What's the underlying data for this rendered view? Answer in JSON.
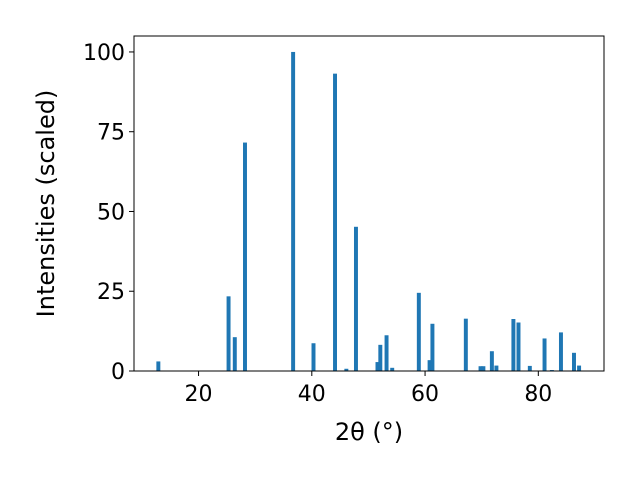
{
  "chart_data": {
    "type": "bar",
    "xlabel": "2θ (°)",
    "ylabel": "Intensities (scaled)",
    "xlim": [
      8.6,
      91.6
    ],
    "ylim": [
      0,
      105
    ],
    "xticks": [
      20,
      40,
      60,
      80
    ],
    "yticks": [
      0,
      25,
      50,
      75,
      100
    ],
    "grid": false,
    "bar_color": "#1f77b4",
    "bar_width": 0.7,
    "x": [
      12.9,
      25.3,
      26.4,
      28.2,
      36.7,
      40.3,
      44.1,
      46.1,
      47.8,
      51.6,
      52.1,
      53.2,
      54.2,
      58.9,
      60.8,
      61.3,
      67.2,
      69.8,
      70.3,
      71.8,
      72.6,
      75.6,
      76.5,
      78.5,
      81.1,
      82.4,
      84.0,
      86.3,
      87.2
    ],
    "values": [
      3.0,
      23.4,
      10.6,
      71.6,
      100.0,
      8.7,
      93.2,
      0.7,
      45.2,
      2.8,
      8.2,
      11.2,
      1.0,
      24.5,
      3.4,
      14.8,
      16.4,
      1.5,
      1.5,
      6.2,
      1.7,
      16.3,
      15.2,
      1.6,
      10.2,
      0.3,
      12.1,
      5.7,
      1.7
    ]
  }
}
